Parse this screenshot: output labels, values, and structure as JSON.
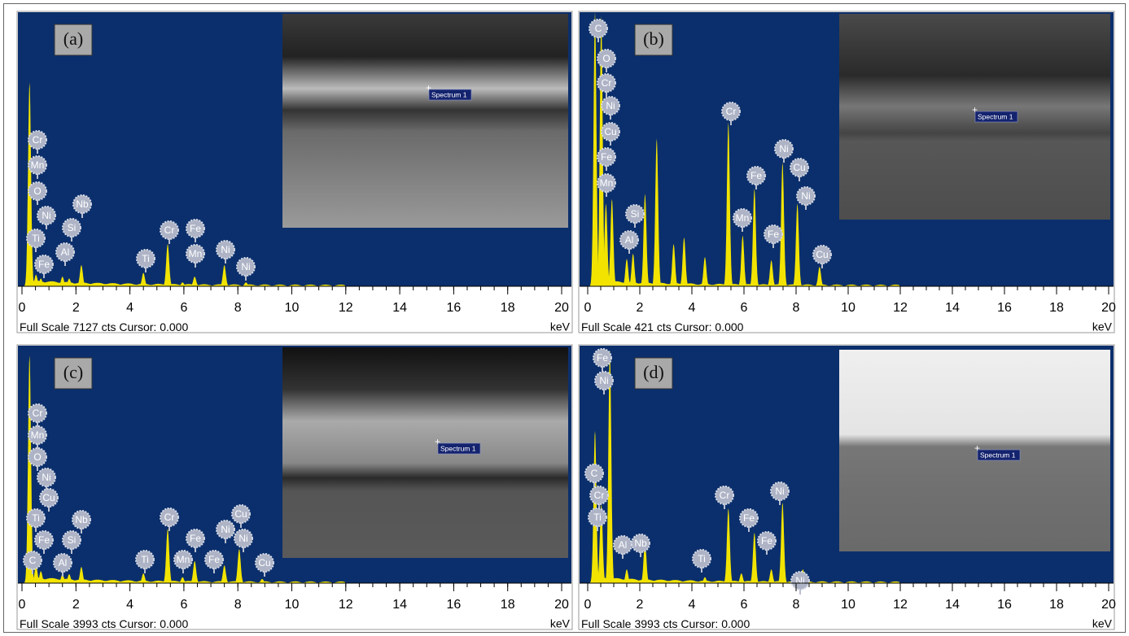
{
  "chart_data": [
    {
      "type": "spectrum",
      "label": "(a)",
      "color": "#f2e400",
      "image_label": "Spectrum 1",
      "x_unit": "keV",
      "footer_prefix": "Full Scale",
      "footer_suffix": "cts Cursor: 0.000",
      "xlim": [
        0,
        20
      ],
      "xticks": [
        0,
        2,
        4,
        6,
        8,
        10,
        12,
        14,
        16,
        18,
        20
      ],
      "ylim": [
        0,
        7127
      ],
      "x": [
        0.28,
        0.52,
        0.7,
        1.5,
        1.75,
        2.2,
        4.5,
        5.4,
        5.95,
        6.4,
        7.5,
        8.3
      ],
      "values": [
        5300,
        300,
        200,
        250,
        200,
        550,
        350,
        1100,
        100,
        250,
        550,
        100
      ],
      "elements": [
        "Cr",
        "Mn",
        "O",
        "Ni",
        "Ti",
        "Si",
        "Nb",
        "Al",
        "Fe",
        "Ti",
        "Cr",
        "Fe",
        "Mn",
        "Ni",
        "Ni"
      ]
    },
    {
      "type": "spectrum",
      "label": "(b)",
      "color": "#f2e400",
      "image_label": "Spectrum 1",
      "x_unit": "keV",
      "footer_prefix": "Full Scale",
      "footer_suffix": "cts Cursor: 0.000",
      "xlim": [
        0,
        20
      ],
      "xticks": [
        0,
        2,
        4,
        6,
        8,
        10,
        12,
        14,
        16,
        18,
        20
      ],
      "ylim": [
        0,
        421
      ],
      "x": [
        0.28,
        0.52,
        0.7,
        0.93,
        1.5,
        1.74,
        2.2,
        2.65,
        3.3,
        3.7,
        4.5,
        5.4,
        5.95,
        6.4,
        7.05,
        7.48,
        8.05,
        8.9
      ],
      "values": [
        421,
        415,
        127,
        134,
        42,
        50,
        142,
        227,
        65,
        75,
        45,
        252,
        78,
        150,
        40,
        190,
        127,
        30
      ],
      "elements": [
        "C",
        "O",
        "Cr",
        "Ni",
        "Cu",
        "Fe",
        "Mn",
        "Si",
        "Al",
        "Cr",
        "Mn",
        "Fe",
        "Ni",
        "Cu",
        "Ni",
        "Fe",
        "Cu"
      ]
    },
    {
      "type": "spectrum",
      "label": "(c)",
      "color": "#f2e400",
      "image_label": "Spectrum 1",
      "x_unit": "keV",
      "footer_prefix": "Full Scale",
      "footer_suffix": "cts Cursor: 0.000",
      "xlim": [
        0,
        20
      ],
      "xticks": [
        0,
        2,
        4,
        6,
        8,
        10,
        12,
        14,
        16,
        18,
        20
      ],
      "ylim": [
        0,
        3993
      ],
      "x": [
        0.28,
        0.52,
        0.7,
        1.5,
        1.75,
        2.2,
        4.5,
        5.4,
        5.95,
        6.4,
        7.5,
        8.05,
        8.9
      ],
      "values": [
        3830,
        300,
        200,
        150,
        150,
        273,
        164,
        916,
        100,
        370,
        300,
        574,
        70
      ],
      "elements": [
        "Cr",
        "Mn",
        "O",
        "Ni",
        "Cu",
        "Ti",
        "Nb",
        "Fe",
        "Si",
        "C",
        "Al",
        "Ti",
        "Cr",
        "Fe",
        "Mn",
        "Fe",
        "Ni",
        "Cu",
        "Ni",
        "Cu"
      ]
    },
    {
      "type": "spectrum",
      "label": "(d)",
      "color": "#f2e400",
      "image_label": "Spectrum 1",
      "x_unit": "keV",
      "footer_prefix": "Full Scale",
      "footer_suffix": "cts Cursor: 0.000",
      "xlim": [
        0,
        20
      ],
      "xticks": [
        0,
        2,
        4,
        6,
        8,
        10,
        12,
        14,
        16,
        18,
        20
      ],
      "ylim": [
        0,
        3993
      ],
      "x": [
        0.28,
        0.52,
        0.85,
        1.5,
        2.2,
        4.5,
        5.4,
        5.9,
        6.4,
        7.05,
        7.48,
        8.26
      ],
      "values": [
        2560,
        1326,
        3925,
        232,
        684,
        100,
        1258,
        164,
        848,
        232,
        1354,
        232
      ],
      "elements": [
        "Fe",
        "Ni",
        "C",
        "Cr",
        "Ti",
        "Al",
        "Nb",
        "Ti",
        "Cr",
        "Fe",
        "Fe",
        "Ni",
        "Ni"
      ]
    }
  ]
}
